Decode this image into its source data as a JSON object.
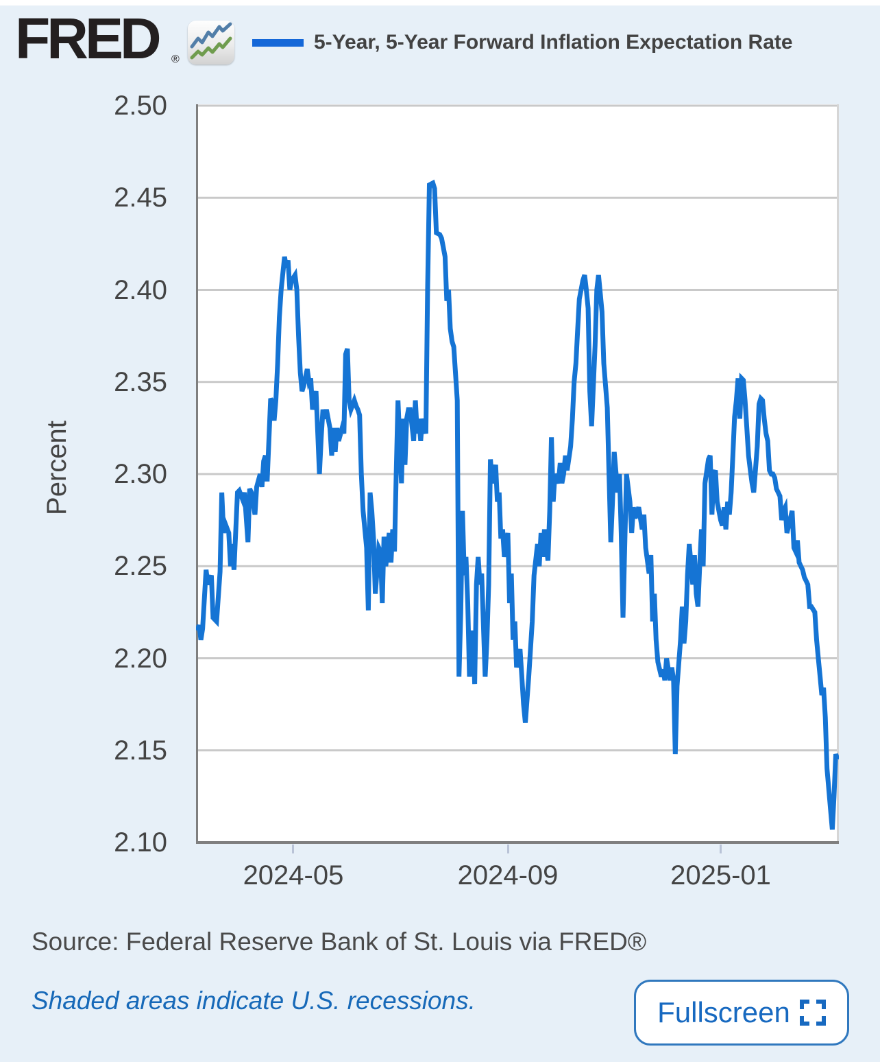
{
  "header": {
    "logo_text": "FRED",
    "logo_reg": "®",
    "legend_label": "5-Year, 5-Year Forward Inflation Expectation Rate"
  },
  "footer": {
    "source_text": "Source: Federal Reserve Bank of St. Louis via FRED®",
    "recession_note": "Shaded areas indicate U.S. recessions.",
    "fullscreen_label": "Fullscreen"
  },
  "colors": {
    "page_bg": "#e7f0f8",
    "plot_bg": "#ffffff",
    "line": "#1574d4",
    "legend_swatch": "#1467d8",
    "gridline": "#c9c9c9",
    "axis": "#7f7f7f",
    "right_border": "#d6d6d6",
    "tick_mark": "#b9c3d7",
    "text": "#444444",
    "link_blue": "#1769b8",
    "logo_icon_blue": "#527ea8",
    "logo_icon_green": "#6f9c4e"
  },
  "chart_data": {
    "type": "line",
    "title": "5-Year, 5-Year Forward Inflation Expectation Rate",
    "ylabel": "Percent",
    "xlabel": "",
    "ylim": [
      2.1,
      2.5
    ],
    "grid": true,
    "legend_position": "top",
    "y_ticks": [
      2.5,
      2.45,
      2.4,
      2.35,
      2.3,
      2.25,
      2.2,
      2.15,
      2.1
    ],
    "x_start_date": "2024-03-07",
    "x_end_day": 367,
    "x_ticks": [
      {
        "label": "2024-05",
        "day": 55
      },
      {
        "label": "2024-09",
        "day": 178
      },
      {
        "label": "2025-01",
        "day": 300
      }
    ],
    "series": [
      {
        "name": "5-Year, 5-Year Forward Inflation Expectation Rate",
        "color": "#1574d4",
        "points": [
          [
            0,
            2.215
          ],
          [
            1,
            2.218
          ],
          [
            2,
            2.21
          ],
          [
            3,
            2.216
          ],
          [
            5,
            2.248
          ],
          [
            6,
            2.24
          ],
          [
            8,
            2.245
          ],
          [
            9,
            2.222
          ],
          [
            11,
            2.22
          ],
          [
            13,
            2.247
          ],
          [
            14,
            2.29
          ],
          [
            15,
            2.268
          ],
          [
            16,
            2.273
          ],
          [
            18,
            2.268
          ],
          [
            19,
            2.25
          ],
          [
            20,
            2.262
          ],
          [
            21,
            2.248
          ],
          [
            23,
            2.29
          ],
          [
            24,
            2.291
          ],
          [
            26,
            2.286
          ],
          [
            27,
            2.29
          ],
          [
            29,
            2.263
          ],
          [
            30,
            2.292
          ],
          [
            31,
            2.29
          ],
          [
            33,
            2.278
          ],
          [
            34,
            2.293
          ],
          [
            36,
            2.3
          ],
          [
            37,
            2.293
          ],
          [
            38,
            2.307
          ],
          [
            39,
            2.31
          ],
          [
            40,
            2.296
          ],
          [
            42,
            2.341
          ],
          [
            43,
            2.339
          ],
          [
            44,
            2.329
          ],
          [
            45,
            2.34
          ],
          [
            46,
            2.36
          ],
          [
            47,
            2.385
          ],
          [
            48,
            2.4
          ],
          [
            50,
            2.418
          ],
          [
            51,
            2.412
          ],
          [
            52,
            2.416
          ],
          [
            53,
            2.4
          ],
          [
            54,
            2.405
          ],
          [
            56,
            2.408
          ],
          [
            57,
            2.4
          ],
          [
            58,
            2.375
          ],
          [
            59,
            2.355
          ],
          [
            60,
            2.345
          ],
          [
            61,
            2.348
          ],
          [
            63,
            2.357
          ],
          [
            64,
            2.35
          ],
          [
            65,
            2.352
          ],
          [
            66,
            2.335
          ],
          [
            67,
            2.34
          ],
          [
            68,
            2.345
          ],
          [
            70,
            2.3
          ],
          [
            71,
            2.32
          ],
          [
            72,
            2.335
          ],
          [
            73,
            2.33
          ],
          [
            74,
            2.335
          ],
          [
            76,
            2.325
          ],
          [
            77,
            2.31
          ],
          [
            78,
            2.325
          ],
          [
            79,
            2.312
          ],
          [
            80,
            2.325
          ],
          [
            81,
            2.318
          ],
          [
            83,
            2.325
          ],
          [
            84,
            2.322
          ],
          [
            85,
            2.365
          ],
          [
            86,
            2.368
          ],
          [
            87,
            2.34
          ],
          [
            88,
            2.335
          ],
          [
            90,
            2.34
          ],
          [
            91,
            2.337
          ],
          [
            92,
            2.335
          ],
          [
            93,
            2.332
          ],
          [
            94,
            2.3
          ],
          [
            95,
            2.28
          ],
          [
            97,
            2.26
          ],
          [
            98,
            2.226
          ],
          [
            99,
            2.29
          ],
          [
            100,
            2.28
          ],
          [
            101,
            2.265
          ],
          [
            102,
            2.235
          ],
          [
            104,
            2.26
          ],
          [
            105,
            2.258
          ],
          [
            106,
            2.23
          ],
          [
            107,
            2.266
          ],
          [
            108,
            2.25
          ],
          [
            110,
            2.268
          ],
          [
            111,
            2.252
          ],
          [
            112,
            2.27
          ],
          [
            113,
            2.258
          ],
          [
            114,
            2.3
          ],
          [
            115,
            2.34
          ],
          [
            117,
            2.295
          ],
          [
            118,
            2.33
          ],
          [
            119,
            2.305
          ],
          [
            120,
            2.33
          ],
          [
            121,
            2.335
          ],
          [
            122,
            2.335
          ],
          [
            124,
            2.318
          ],
          [
            125,
            2.34
          ],
          [
            126,
            2.322
          ],
          [
            127,
            2.33
          ],
          [
            128,
            2.318
          ],
          [
            129,
            2.33
          ],
          [
            131,
            2.322
          ],
          [
            132,
            2.4
          ],
          [
            133,
            2.457
          ],
          [
            135,
            2.458
          ],
          [
            136,
            2.455
          ],
          [
            137,
            2.431
          ],
          [
            139,
            2.43
          ],
          [
            140,
            2.428
          ],
          [
            142,
            2.418
          ],
          [
            143,
            2.394
          ],
          [
            144,
            2.4
          ],
          [
            145,
            2.379
          ],
          [
            146,
            2.372
          ],
          [
            147,
            2.369
          ],
          [
            149,
            2.34
          ],
          [
            150,
            2.19
          ],
          [
            151,
            2.225
          ],
          [
            152,
            2.28
          ],
          [
            153,
            2.245
          ],
          [
            154,
            2.255
          ],
          [
            155,
            2.23
          ],
          [
            156,
            2.19
          ],
          [
            158,
            2.215
          ],
          [
            159,
            2.186
          ],
          [
            160,
            2.24
          ],
          [
            161,
            2.255
          ],
          [
            162,
            2.24
          ],
          [
            163,
            2.246
          ],
          [
            165,
            2.19
          ],
          [
            166,
            2.21
          ],
          [
            167,
            2.24
          ],
          [
            168,
            2.308
          ],
          [
            169,
            2.295
          ],
          [
            171,
            2.305
          ],
          [
            172,
            2.285
          ],
          [
            173,
            2.29
          ],
          [
            174,
            2.265
          ],
          [
            175,
            2.27
          ],
          [
            176,
            2.255
          ],
          [
            178,
            2.268
          ],
          [
            179,
            2.23
          ],
          [
            180,
            2.246
          ],
          [
            181,
            2.21
          ],
          [
            182,
            2.22
          ],
          [
            183,
            2.195
          ],
          [
            185,
            2.205
          ],
          [
            186,
            2.19
          ],
          [
            187,
            2.175
          ],
          [
            188,
            2.165
          ],
          [
            190,
            2.19
          ],
          [
            192,
            2.22
          ],
          [
            193,
            2.245
          ],
          [
            195,
            2.262
          ],
          [
            196,
            2.25
          ],
          [
            197,
            2.268
          ],
          [
            198,
            2.255
          ],
          [
            199,
            2.27
          ],
          [
            201,
            2.253
          ],
          [
            202,
            2.28
          ],
          [
            203,
            2.32
          ],
          [
            204,
            2.285
          ],
          [
            205,
            2.3
          ],
          [
            207,
            2.295
          ],
          [
            208,
            2.306
          ],
          [
            209,
            2.295
          ],
          [
            210,
            2.3
          ],
          [
            211,
            2.31
          ],
          [
            212,
            2.302
          ],
          [
            214,
            2.315
          ],
          [
            215,
            2.33
          ],
          [
            216,
            2.35
          ],
          [
            217,
            2.36
          ],
          [
            218,
            2.378
          ],
          [
            219,
            2.395
          ],
          [
            221,
            2.405
          ],
          [
            222,
            2.408
          ],
          [
            223,
            2.4
          ],
          [
            224,
            2.39
          ],
          [
            225,
            2.345
          ],
          [
            226,
            2.326
          ],
          [
            228,
            2.37
          ],
          [
            229,
            2.4
          ],
          [
            230,
            2.408
          ],
          [
            231,
            2.398
          ],
          [
            232,
            2.388
          ],
          [
            233,
            2.36
          ],
          [
            235,
            2.336
          ],
          [
            236,
            2.3
          ],
          [
            237,
            2.263
          ],
          [
            238,
            2.285
          ],
          [
            239,
            2.312
          ],
          [
            241,
            2.29
          ],
          [
            242,
            2.3
          ],
          [
            243,
            2.268
          ],
          [
            244,
            2.222
          ],
          [
            245,
            2.26
          ],
          [
            246,
            2.3
          ],
          [
            248,
            2.285
          ],
          [
            249,
            2.268
          ],
          [
            250,
            2.282
          ],
          [
            251,
            2.276
          ],
          [
            253,
            2.282
          ],
          [
            255,
            2.27
          ],
          [
            256,
            2.278
          ],
          [
            257,
            2.26
          ],
          [
            259,
            2.246
          ],
          [
            260,
            2.256
          ],
          [
            261,
            2.22
          ],
          [
            262,
            2.235
          ],
          [
            263,
            2.21
          ],
          [
            264,
            2.198
          ],
          [
            266,
            2.19
          ],
          [
            267,
            2.194
          ],
          [
            268,
            2.188
          ],
          [
            269,
            2.2
          ],
          [
            271,
            2.188
          ],
          [
            272,
            2.195
          ],
          [
            273,
            2.188
          ],
          [
            274,
            2.148
          ],
          [
            275,
            2.185
          ],
          [
            277,
            2.21
          ],
          [
            278,
            2.228
          ],
          [
            279,
            2.208
          ],
          [
            280,
            2.22
          ],
          [
            281,
            2.245
          ],
          [
            282,
            2.262
          ],
          [
            284,
            2.24
          ],
          [
            285,
            2.256
          ],
          [
            286,
            2.235
          ],
          [
            287,
            2.228
          ],
          [
            288,
            2.25
          ],
          [
            289,
            2.27
          ],
          [
            290,
            2.25
          ],
          [
            291,
            2.295
          ],
          [
            293,
            2.308
          ],
          [
            294,
            2.31
          ],
          [
            295,
            2.278
          ],
          [
            296,
            2.3
          ],
          [
            297,
            2.302
          ],
          [
            298,
            2.285
          ],
          [
            300,
            2.275
          ],
          [
            301,
            2.272
          ],
          [
            302,
            2.282
          ],
          [
            303,
            2.27
          ],
          [
            304,
            2.285
          ],
          [
            305,
            2.278
          ],
          [
            306,
            2.29
          ],
          [
            307,
            2.31
          ],
          [
            308,
            2.331
          ],
          [
            309,
            2.34
          ],
          [
            310,
            2.352
          ],
          [
            311,
            2.33
          ],
          [
            312,
            2.352
          ],
          [
            313,
            2.351
          ],
          [
            314,
            2.34
          ],
          [
            315,
            2.325
          ],
          [
            316,
            2.31
          ],
          [
            317,
            2.302
          ],
          [
            318,
            2.295
          ],
          [
            319,
            2.29
          ],
          [
            321,
            2.315
          ],
          [
            322,
            2.338
          ],
          [
            323,
            2.341
          ],
          [
            324,
            2.34
          ],
          [
            325,
            2.33
          ],
          [
            326,
            2.322
          ],
          [
            327,
            2.318
          ],
          [
            328,
            2.302
          ],
          [
            329,
            2.3
          ],
          [
            330,
            2.3
          ],
          [
            331,
            2.298
          ],
          [
            332,
            2.292
          ],
          [
            334,
            2.288
          ],
          [
            335,
            2.275
          ],
          [
            336,
            2.28
          ],
          [
            337,
            2.282
          ],
          [
            338,
            2.268
          ],
          [
            339,
            2.272
          ],
          [
            341,
            2.28
          ],
          [
            342,
            2.26
          ],
          [
            343,
            2.258
          ],
          [
            344,
            2.264
          ],
          [
            345,
            2.252
          ],
          [
            347,
            2.248
          ],
          [
            348,
            2.244
          ],
          [
            349,
            2.242
          ],
          [
            350,
            2.24
          ],
          [
            351,
            2.228
          ],
          [
            352,
            2.228
          ],
          [
            354,
            2.225
          ],
          [
            355,
            2.21
          ],
          [
            356,
            2.2
          ],
          [
            357,
            2.19
          ],
          [
            358,
            2.18
          ],
          [
            359,
            2.184
          ],
          [
            360,
            2.168
          ],
          [
            361,
            2.14
          ],
          [
            363,
            2.118
          ],
          [
            364,
            2.107
          ],
          [
            365,
            2.125
          ],
          [
            366,
            2.148
          ],
          [
            367,
            2.145
          ]
        ]
      }
    ]
  }
}
